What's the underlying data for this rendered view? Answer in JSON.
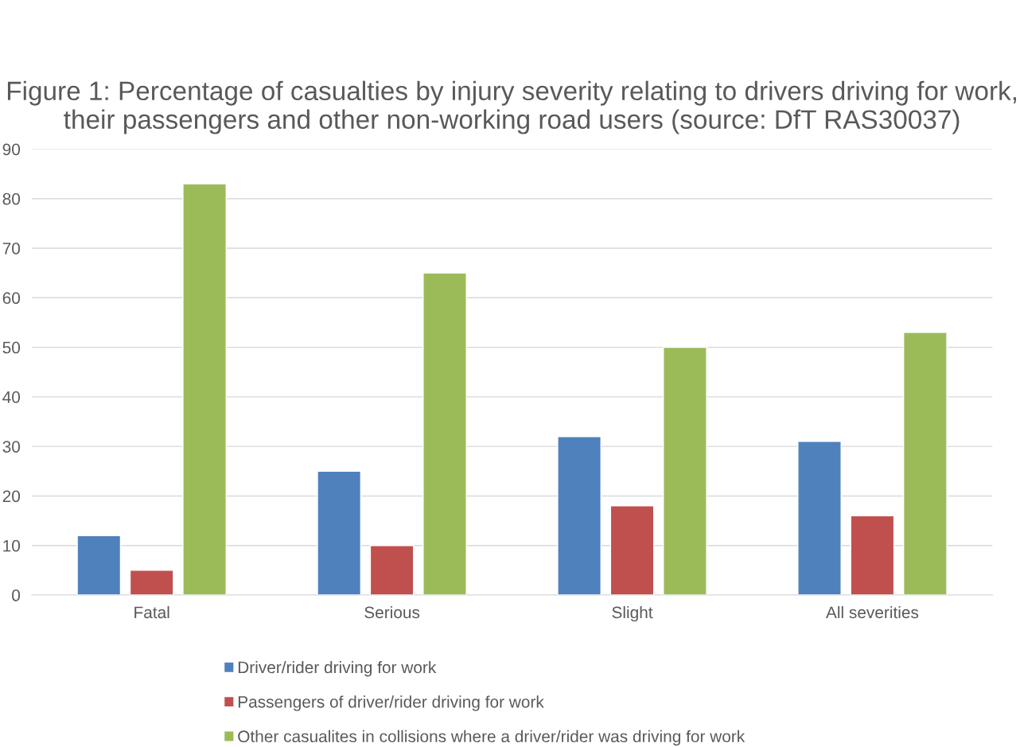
{
  "chart_data": {
    "type": "bar",
    "title": "Figure 1: Percentage of casualties by injury severity relating to drivers driving for work, their passengers and other non-working road users (source: DfT RAS30037)",
    "categories": [
      "Fatal",
      "Serious",
      "Slight",
      "All severities"
    ],
    "series": [
      {
        "name": "Driver/rider driving for work",
        "color": "#4f81bd",
        "values": [
          12,
          25,
          32,
          31
        ]
      },
      {
        "name": "Passengers of driver/rider driving for work",
        "color": "#c0504d",
        "values": [
          5,
          10,
          18,
          16
        ]
      },
      {
        "name": "Other casualites in collisions where a driver/rider was driving for work",
        "color": "#9bbb59",
        "values": [
          83,
          65,
          50,
          53
        ]
      }
    ],
    "ylim": [
      0,
      90
    ],
    "yticks": [
      0,
      10,
      20,
      30,
      40,
      50,
      60,
      70,
      80,
      90
    ],
    "grid": "y",
    "legend": "bottom"
  }
}
